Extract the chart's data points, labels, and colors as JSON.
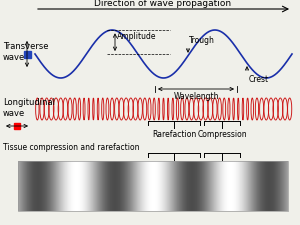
{
  "bg_color": "#f0f0ea",
  "title_text": "Direction of wave propagation",
  "title_fontsize": 6.5,
  "wave_color": "#1a2faa",
  "long_wave_color": "#cc1111",
  "transverse_label": "Transverse\nwave",
  "longitudinal_label": "Longitudinal\nwave",
  "amplitude_label": "Amplitude",
  "trough_label": "Trough",
  "crest_label": "Crest",
  "wavelength_label": "Wavelength",
  "rarefaction_label": "Rarefaction",
  "compression_label": "Compression",
  "tissue_label": "Tissue compression and rarefaction",
  "label_fontsize": 6,
  "small_fontsize": 5.5,
  "tissue_fontsize": 5.5
}
